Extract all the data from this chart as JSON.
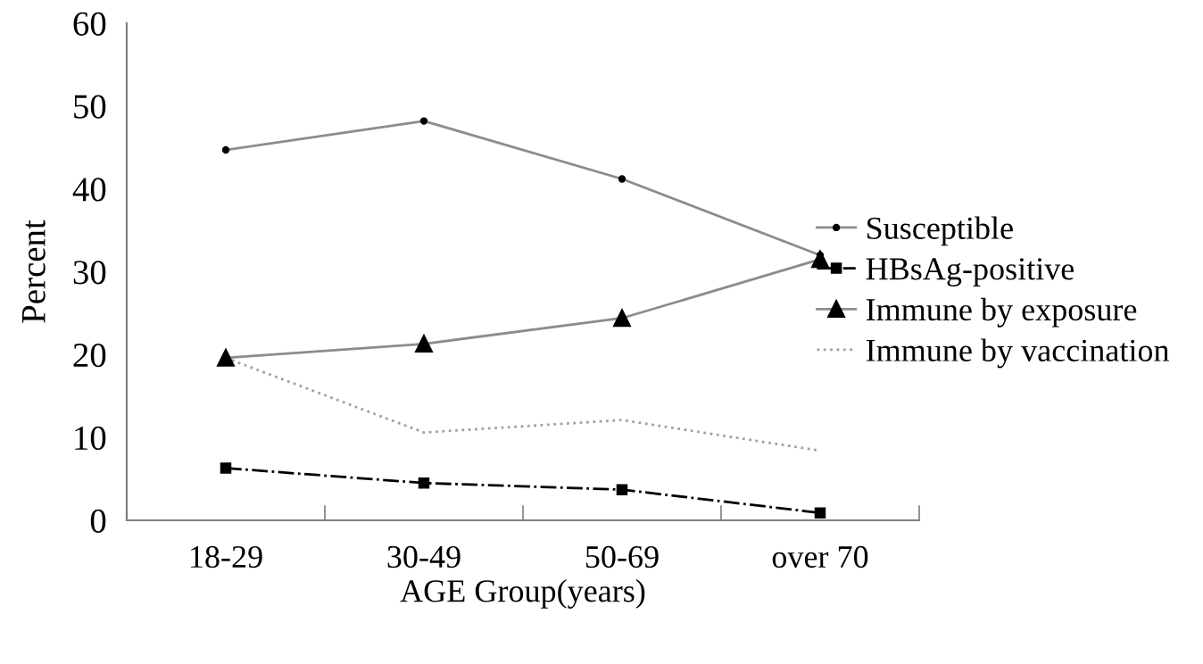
{
  "chart_data": {
    "type": "line",
    "xlabel": "AGE Group(years)",
    "ylabel": "Percent",
    "categories": [
      "18-29",
      "30-49",
      "50-69",
      "over 70"
    ],
    "series": [
      {
        "name": "Susceptible",
        "color": "#8c8c8c",
        "values": [
          44.7,
          48.2,
          41.2,
          32.0
        ],
        "marker": "circle",
        "line_style": "solid"
      },
      {
        "name": "HBsAg-positive",
        "color": "#000000",
        "values": [
          6.3,
          4.5,
          3.7,
          0.9
        ],
        "marker": "square",
        "line_style": "dashdot"
      },
      {
        "name": "Immune by exposure",
        "color": "#8c8c8c",
        "values": [
          19.6,
          21.3,
          24.4,
          31.5
        ],
        "marker": "triangle",
        "line_style": "solid"
      },
      {
        "name": "Immune by vaccination",
        "color": "#a0a0a0",
        "values": [
          19.6,
          10.6,
          12.1,
          8.4
        ],
        "marker": "none",
        "line_style": "dotted"
      }
    ],
    "ylim": [
      0,
      60
    ],
    "yticks": [
      0,
      10,
      20,
      30,
      40,
      50,
      60
    ],
    "grid": false,
    "legend": "right"
  }
}
